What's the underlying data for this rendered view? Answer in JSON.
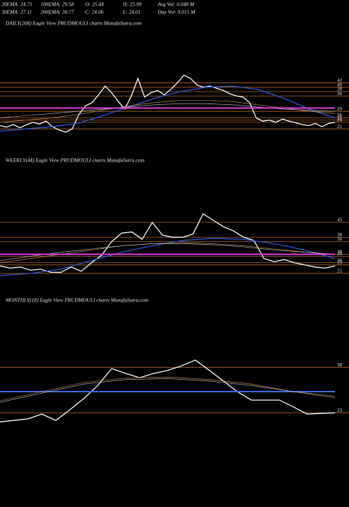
{
  "header": {
    "items": [
      "20EMA: 24.71",
      "100EMA: 29.58",
      "O: 25.44",
      "H: 25.99",
      "Avg Vol: 0.048  M",
      "30EMA: 27.11",
      "200EMA: 30.77",
      "C: 24.06",
      "L: 24.01",
      "Day Vol: 0.015  M"
    ]
  },
  "chart_data": [
    {
      "type": "line",
      "title": "DAILY(208) Eagle  View  PRUDMOULI charts MunafaSutra.com",
      "ylim": [
        16,
        74
      ],
      "yticks": [
        42,
        40,
        38,
        36,
        29,
        26,
        25,
        24,
        21
      ],
      "level_color": "#b8642a",
      "series": [
        {
          "color": "#ffffff",
          "width": 1.3,
          "values": [
            22.5,
            21.8,
            23.0,
            21.5,
            22.8,
            24.0,
            23.2,
            24.5,
            22.0,
            20.5,
            19.5,
            21.0,
            27.5,
            31.5,
            33.0,
            36.5,
            40.5,
            37.5,
            33.5,
            30.0,
            36.0,
            44.0,
            35.5,
            37.5,
            38.5,
            36.5,
            39.0,
            42.0,
            45.5,
            44.0,
            41.0,
            40.0,
            40.5,
            39.5,
            38.5,
            37.0,
            36.0,
            35.5,
            33.0,
            26.0,
            24.5,
            25.0,
            24.0,
            25.5,
            24.5,
            23.8,
            23.0,
            22.5,
            23.5,
            22.0,
            23.5,
            24.0
          ]
        },
        {
          "color": "#2a5bd7",
          "width": 1.3,
          "values": [
            20,
            21,
            22,
            23.5,
            27,
            31,
            35,
            38,
            40,
            40.5,
            39,
            35,
            30,
            26
          ]
        },
        {
          "color": "#d9a066",
          "width": 0.6,
          "values": [
            24,
            25,
            26,
            27.5,
            29.5,
            31.5,
            33,
            34,
            34,
            33.5,
            32,
            30.5,
            29,
            28
          ]
        },
        {
          "color": "#cccccc",
          "width": 0.6,
          "values": [
            26,
            27,
            28,
            29,
            30,
            31,
            32,
            32.5,
            32.5,
            32,
            31,
            30,
            29.5,
            29
          ]
        },
        {
          "color": "#e040e0",
          "width": 2,
          "values": [
            30.5,
            30.5
          ]
        }
      ]
    },
    {
      "type": "line",
      "title": "WEEKLY(44) Eagle  View  PRUDMOULI charts MunafaSutra.com",
      "ylim": [
        20,
        80
      ],
      "yticks": [
        45,
        38,
        36,
        30,
        29,
        26,
        25,
        21
      ],
      "level_color": "#b8642a",
      "series": [
        {
          "color": "#ffffff",
          "width": 1.3,
          "values": [
            24.5,
            23.5,
            24,
            22.5,
            23,
            21.5,
            21.5,
            24,
            22,
            26,
            29.5,
            36,
            40,
            40.5,
            37,
            45,
            39,
            38,
            38,
            39.5,
            49,
            46,
            43,
            41,
            38,
            36.5,
            28,
            26.5,
            27.5,
            26,
            25,
            24,
            23.5,
            24.5
          ]
        },
        {
          "color": "#2a5bd7",
          "width": 1.3,
          "values": [
            20,
            21,
            23,
            27,
            31,
            34,
            36.5,
            37.5,
            37,
            35,
            32,
            28
          ]
        },
        {
          "color": "#d9a066",
          "width": 0.6,
          "values": [
            26,
            28,
            30,
            32,
            34,
            35,
            35.5,
            35,
            34,
            32.5,
            31,
            30
          ]
        },
        {
          "color": "#cccccc",
          "width": 0.6,
          "values": [
            27,
            29,
            31,
            32.5,
            34,
            35,
            35,
            34.5,
            33.5,
            32,
            31,
            30
          ]
        },
        {
          "color": "#e040e0",
          "width": 2,
          "values": [
            30,
            30
          ]
        }
      ]
    },
    {
      "type": "line",
      "title": "MONTHLY(18) Eagle  View  PRUDMOULI charts MunafaSutra.com",
      "ylim": [
        0,
        66
      ],
      "yticks": [
        38,
        23
      ],
      "level_color": "#b8642a",
      "series": [
        {
          "color": "#ffffff",
          "width": 1.3,
          "values": [
            20,
            20.5,
            21,
            22.6,
            20.5,
            24,
            27.7,
            32,
            37.6,
            36,
            34.6,
            36,
            37,
            38.5,
            40.4,
            37,
            33.5,
            30,
            27.2,
            27.2,
            27.2,
            25,
            22.6,
            22.8,
            23
          ]
        },
        {
          "color": "#3a6be7",
          "width": 2,
          "values": [
            30,
            30
          ]
        },
        {
          "color": "#d9a066",
          "width": 0.6,
          "values": [
            27,
            30,
            33,
            34.5,
            34.8,
            34,
            32.5,
            30,
            28
          ]
        },
        {
          "color": "#cccccc",
          "width": 0.6,
          "values": [
            26.5,
            29.5,
            32.5,
            34,
            34.3,
            33.5,
            32,
            30,
            28.5
          ]
        }
      ]
    }
  ]
}
